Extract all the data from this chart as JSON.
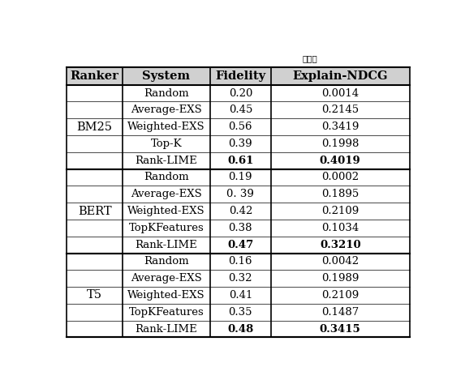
{
  "title_above": "保真度",
  "headers": [
    "Ranker",
    "System",
    "Fidelity",
    "Explain-NDCG"
  ],
  "groups": [
    {
      "ranker": "BM25",
      "rows": [
        {
          "system": "Random",
          "fidelity": "0.20",
          "endcg": "0.0014",
          "bold": false
        },
        {
          "system": "Average-EXS",
          "fidelity": "0.45",
          "endcg": "0.2145",
          "bold": false
        },
        {
          "system": "Weighted-EXS",
          "fidelity": "0.56",
          "endcg": "0.3419",
          "bold": false
        },
        {
          "system": "Top-K",
          "fidelity": "0.39",
          "endcg": "0.1998",
          "bold": false
        },
        {
          "system": "Rank-LIME",
          "fidelity": "0.61",
          "endcg": "0.4019",
          "bold": true
        }
      ]
    },
    {
      "ranker": "BERT",
      "rows": [
        {
          "system": "Random",
          "fidelity": "0.19",
          "endcg": "0.0002",
          "bold": false
        },
        {
          "system": "Average-EXS",
          "fidelity": "0. 39",
          "endcg": "0.1895",
          "bold": false
        },
        {
          "system": "Weighted-EXS",
          "fidelity": "0.42",
          "endcg": "0.2109",
          "bold": false
        },
        {
          "system": "TopKFeatures",
          "fidelity": "0.38",
          "endcg": "0.1034",
          "bold": false
        },
        {
          "system": "Rank-LIME",
          "fidelity": "0.47",
          "endcg": "0.3210",
          "bold": true
        }
      ]
    },
    {
      "ranker": "T5",
      "rows": [
        {
          "system": "Random",
          "fidelity": "0.16",
          "endcg": "0.0042",
          "bold": false
        },
        {
          "system": "Average-EXS",
          "fidelity": "0.32",
          "endcg": "0.1989",
          "bold": false
        },
        {
          "system": "Weighted-EXS",
          "fidelity": "0.41",
          "endcg": "0.2109",
          "bold": false
        },
        {
          "system": "TopKFeatures",
          "fidelity": "0.35",
          "endcg": "0.1487",
          "bold": false
        },
        {
          "system": "Rank-LIME",
          "fidelity": "0.48",
          "endcg": "0.3415",
          "bold": true
        }
      ]
    }
  ],
  "background_color": "#ffffff",
  "border_color": "#000000",
  "header_bg": "#d0d0d0",
  "text_color": "#000000",
  "font_size": 9.5,
  "header_font_size": 10.5,
  "title_font_size": 7.5
}
